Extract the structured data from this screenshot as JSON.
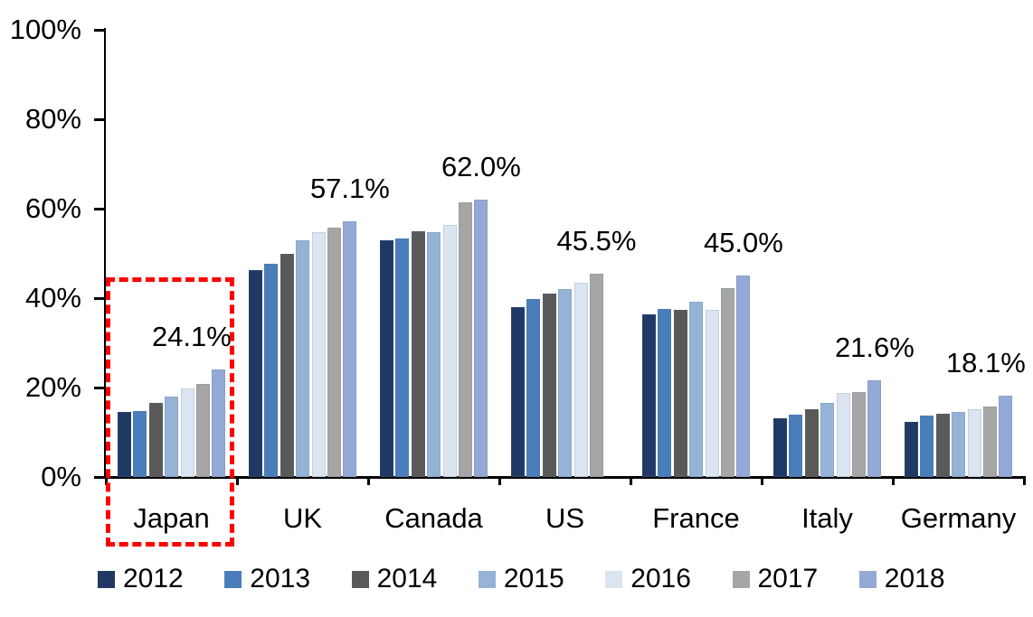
{
  "chart_data": {
    "type": "bar",
    "title": "",
    "xlabel": "",
    "ylabel": "",
    "ylim": [
      0,
      100
    ],
    "ytick_labels": [
      "100%",
      "80%",
      "60%",
      "40%",
      "20%",
      "0%"
    ],
    "grid": false,
    "legend_position": "bottom",
    "categories": [
      {
        "name": "Japan",
        "data_label": "24.1%",
        "label_shift": -30,
        "highlighted": true
      },
      {
        "name": "UK",
        "data_label": "57.1%",
        "label_shift": 0,
        "highlighted": false
      },
      {
        "name": "Canada",
        "data_label": "62.0%",
        "label_shift": 0,
        "highlighted": false
      },
      {
        "name": "US",
        "data_label": "45.5%",
        "label_shift": 0,
        "highlighted": false
      },
      {
        "name": "France",
        "data_label": "45.0%",
        "label_shift": 0,
        "highlighted": false
      },
      {
        "name": "Italy",
        "data_label": "21.6%",
        "label_shift": 0,
        "highlighted": false
      },
      {
        "name": "Germany",
        "data_label": "18.1%",
        "label_shift": -22,
        "highlighted": false
      }
    ],
    "series": [
      {
        "name": "2012",
        "color": "#1F3864",
        "values": [
          14.5,
          46.2,
          52.9,
          38.0,
          36.3,
          13.1,
          12.3
        ]
      },
      {
        "name": "2013",
        "color": "#4A7EBB",
        "values": [
          14.8,
          47.6,
          53.3,
          39.8,
          37.5,
          13.9,
          13.8
        ]
      },
      {
        "name": "2014",
        "color": "#595959",
        "values": [
          16.5,
          49.8,
          54.9,
          41.0,
          37.4,
          15.1,
          14.1
        ]
      },
      {
        "name": "2015",
        "color": "#95B3D7",
        "values": [
          17.9,
          53.0,
          54.7,
          42.0,
          39.2,
          16.6,
          14.6
        ]
      },
      {
        "name": "2016",
        "color": "#DBE5F1",
        "values": [
          19.8,
          54.7,
          56.3,
          43.4,
          37.3,
          18.8,
          15.2
        ]
      },
      {
        "name": "2017",
        "color": "#A6A6A6",
        "values": [
          20.9,
          55.8,
          61.5,
          45.5,
          42.2,
          19.0,
          15.7
        ]
      },
      {
        "name": "2018",
        "color": "#95A9D6",
        "values": [
          24.1,
          57.1,
          62.0,
          null,
          45.0,
          21.6,
          18.1
        ]
      }
    ],
    "annotations": {
      "highlight_box": {
        "target": "Japan",
        "color": "#FE0000",
        "style": "dashed"
      }
    }
  },
  "legend": {
    "items": [
      {
        "label": "2012",
        "color": "#1F3864"
      },
      {
        "label": "2013",
        "color": "#4A7EBB"
      },
      {
        "label": "2014",
        "color": "#595959"
      },
      {
        "label": "2015",
        "color": "#95B3D7"
      },
      {
        "label": "2016",
        "color": "#DBE5F1"
      },
      {
        "label": "2017",
        "color": "#A6A6A6"
      },
      {
        "label": "2018",
        "color": "#95A9D6"
      }
    ]
  },
  "colors": {
    "axis": "#000000",
    "background": "#FFFFFF",
    "highlight": "#FE0000"
  }
}
